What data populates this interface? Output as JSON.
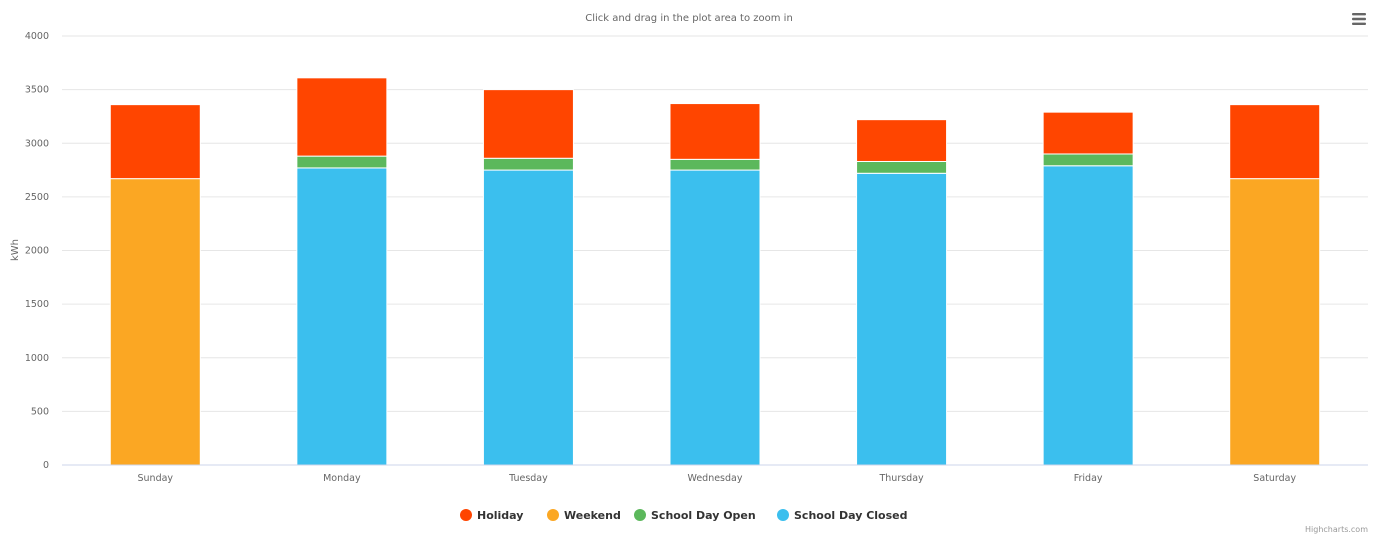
{
  "header": {
    "subtitle": "Click and drag in the plot area to zoom in",
    "menu_icon": "hamburger-menu-icon"
  },
  "credits": "Highcharts.com",
  "chart_data": {
    "type": "bar",
    "stacked": true,
    "categories": [
      "Sunday",
      "Monday",
      "Tuesday",
      "Wednesday",
      "Thursday",
      "Friday",
      "Saturday"
    ],
    "ylabel": "kWh",
    "ylim": [
      0,
      4000
    ],
    "yticks": [
      0,
      500,
      1000,
      1500,
      2000,
      2500,
      3000,
      3500,
      4000
    ],
    "grid": true,
    "legend_position": "bottom-center",
    "series": [
      {
        "name": "School Day Closed",
        "color": "#3BBFEE",
        "values": [
          0,
          2770,
          2750,
          2750,
          2720,
          2790,
          0
        ]
      },
      {
        "name": "School Day Open",
        "color": "#5CB85C",
        "values": [
          0,
          110,
          110,
          100,
          110,
          110,
          0
        ]
      },
      {
        "name": "Weekend",
        "color": "#FBA723",
        "values": [
          2670,
          0,
          0,
          0,
          0,
          0,
          2670
        ]
      },
      {
        "name": "Holiday",
        "color": "#FF4500",
        "values": [
          690,
          730,
          640,
          520,
          390,
          390,
          690
        ]
      }
    ],
    "legend_order": [
      "Holiday",
      "Weekend",
      "School Day Open",
      "School Day Closed"
    ]
  }
}
